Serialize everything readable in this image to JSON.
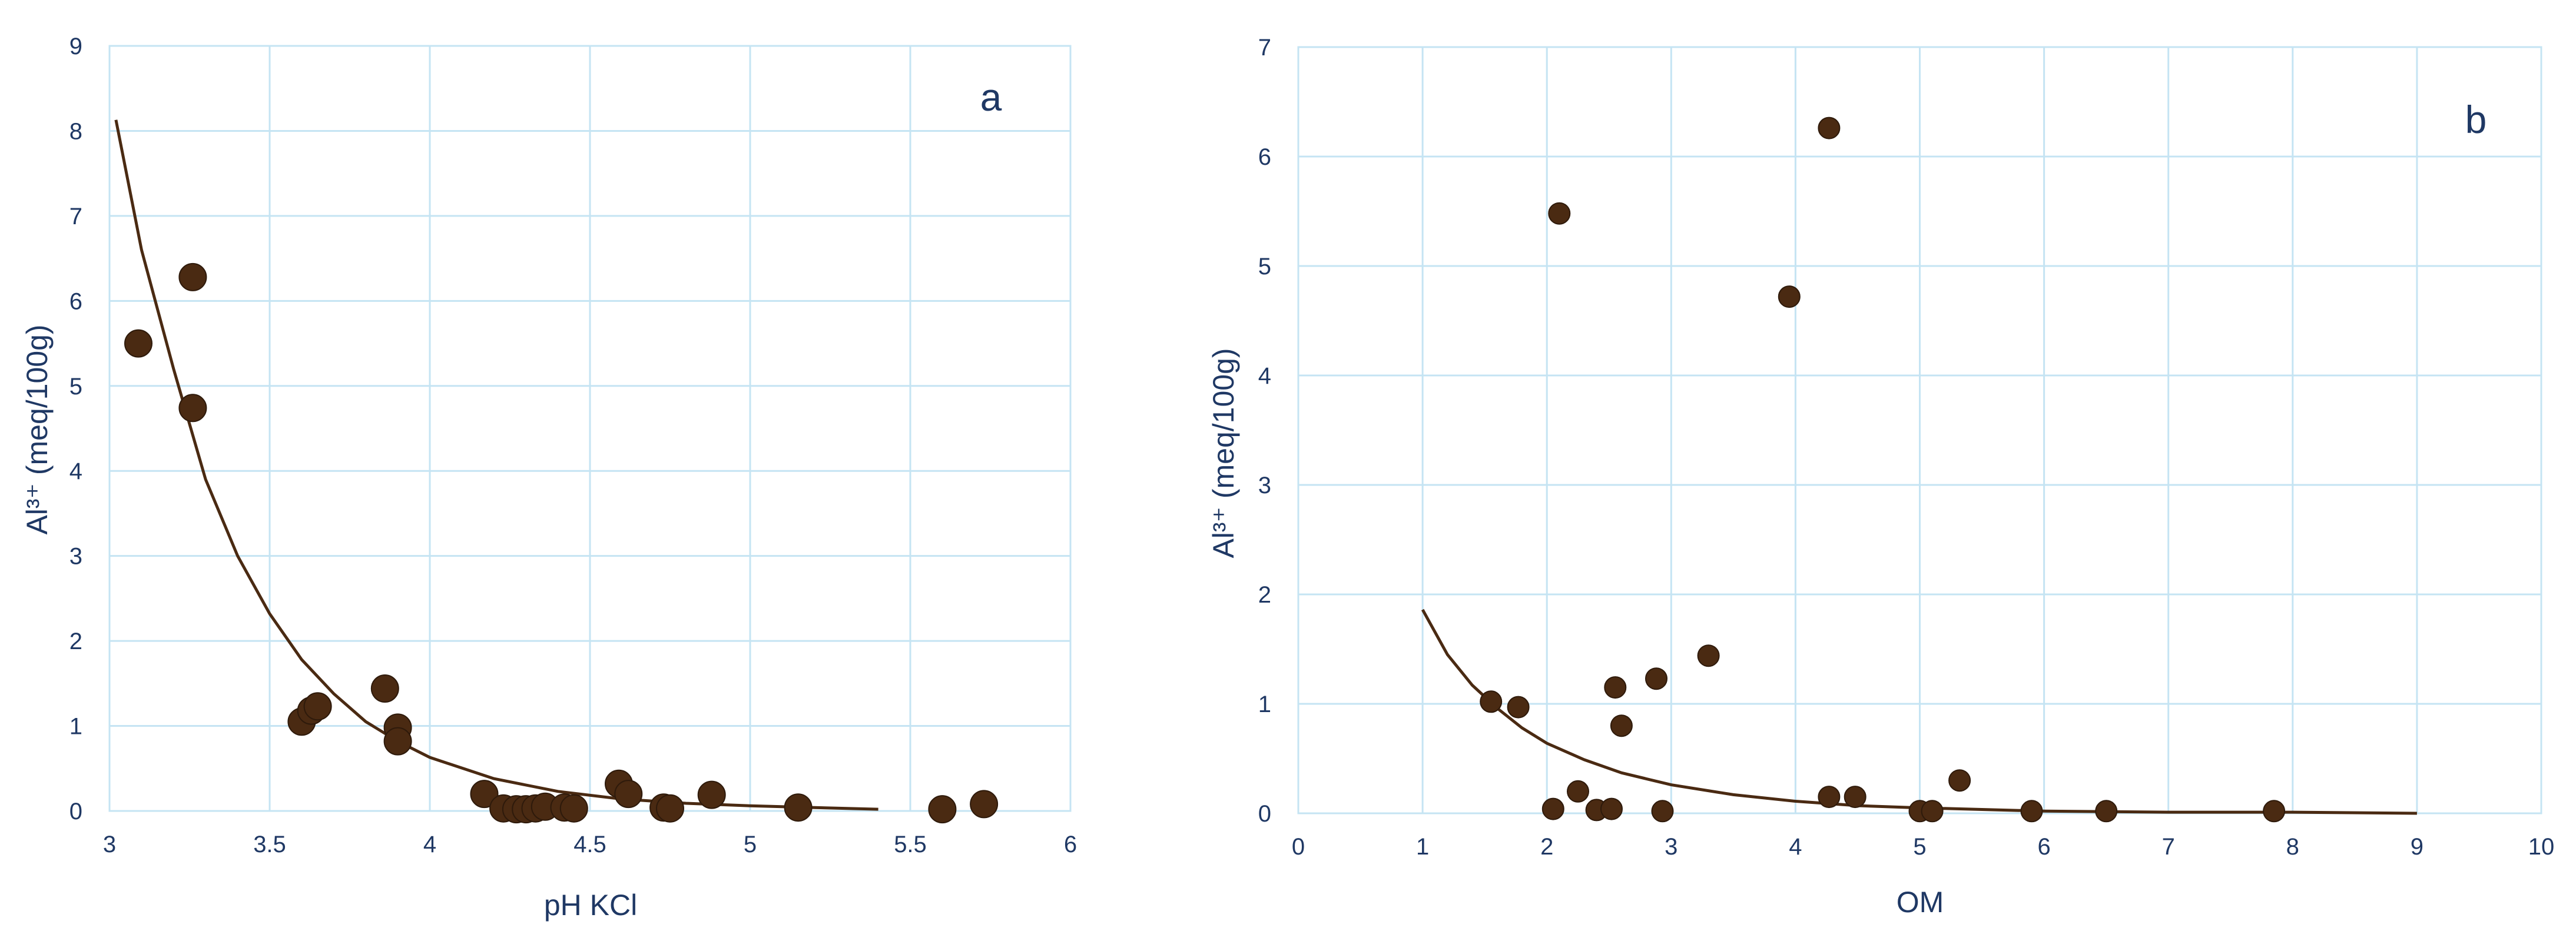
{
  "colors": {
    "marker": "#4a2a12",
    "curve": "#4a2a12",
    "grid": "#c5e4f3",
    "text": "#1f3864"
  },
  "chart_data": [
    {
      "type": "scatter",
      "panel_label": "a",
      "xlabel": "pH KCl",
      "ylabel": "Al³⁺ (meq/100g)",
      "xlim": [
        3,
        6
      ],
      "ylim": [
        0,
        9
      ],
      "x_ticks": [
        "3",
        "3.5",
        "4",
        "4.5",
        "5",
        "5.5",
        "6"
      ],
      "y_ticks": [
        "0",
        "1",
        "2",
        "3",
        "4",
        "5",
        "6",
        "7",
        "8",
        "9"
      ],
      "grid": true,
      "legend": "none",
      "series": [
        {
          "type": "scatter",
          "points": [
            [
              3.09,
              5.5
            ],
            [
              3.26,
              6.28
            ],
            [
              3.26,
              4.74
            ],
            [
              3.6,
              1.05
            ],
            [
              3.63,
              1.18
            ],
            [
              3.65,
              1.23
            ],
            [
              3.86,
              1.44
            ],
            [
              3.9,
              0.98
            ],
            [
              3.9,
              0.82
            ],
            [
              4.17,
              0.2
            ],
            [
              4.23,
              0.03
            ],
            [
              4.27,
              0.02
            ],
            [
              4.3,
              0.02
            ],
            [
              4.33,
              0.03
            ],
            [
              4.36,
              0.05
            ],
            [
              4.42,
              0.04
            ],
            [
              4.45,
              0.03
            ],
            [
              4.59,
              0.32
            ],
            [
              4.62,
              0.2
            ],
            [
              4.73,
              0.04
            ],
            [
              4.75,
              0.03
            ],
            [
              4.88,
              0.19
            ],
            [
              5.15,
              0.04
            ],
            [
              5.6,
              0.02
            ],
            [
              5.73,
              0.08
            ]
          ]
        },
        {
          "type": "line",
          "points": [
            [
              3.02,
              8.13
            ],
            [
              3.1,
              6.6
            ],
            [
              3.2,
              5.2
            ],
            [
              3.3,
              3.9
            ],
            [
              3.4,
              3.0
            ],
            [
              3.5,
              2.32
            ],
            [
              3.6,
              1.78
            ],
            [
              3.7,
              1.38
            ],
            [
              3.8,
              1.05
            ],
            [
              3.9,
              0.82
            ],
            [
              4.0,
              0.63
            ],
            [
              4.2,
              0.38
            ],
            [
              4.4,
              0.23
            ],
            [
              4.6,
              0.14
            ],
            [
              4.8,
              0.09
            ],
            [
              5.0,
              0.06
            ],
            [
              5.2,
              0.04
            ],
            [
              5.4,
              0.02
            ]
          ]
        }
      ]
    },
    {
      "type": "scatter",
      "panel_label": "b",
      "xlabel": "OM",
      "ylabel": "Al³⁺ (meq/100g)",
      "xlim": [
        0,
        10
      ],
      "ylim": [
        0,
        7
      ],
      "x_ticks": [
        "0",
        "1",
        "2",
        "3",
        "4",
        "5",
        "6",
        "7",
        "8",
        "9",
        "10"
      ],
      "y_ticks": [
        "0",
        "1",
        "2",
        "3",
        "4",
        "5",
        "6",
        "7"
      ],
      "grid": true,
      "legend": "none",
      "series": [
        {
          "type": "scatter",
          "points": [
            [
              1.55,
              1.02
            ],
            [
              1.77,
              0.97
            ],
            [
              2.05,
              0.04
            ],
            [
              2.1,
              5.48
            ],
            [
              2.25,
              0.2
            ],
            [
              2.4,
              0.03
            ],
            [
              2.52,
              0.04
            ],
            [
              2.55,
              1.15
            ],
            [
              2.6,
              0.8
            ],
            [
              2.88,
              1.23
            ],
            [
              2.93,
              0.02
            ],
            [
              3.3,
              1.44
            ],
            [
              3.95,
              4.72
            ],
            [
              4.27,
              6.26
            ],
            [
              4.27,
              0.15
            ],
            [
              4.48,
              0.15
            ],
            [
              5.0,
              0.02
            ],
            [
              5.1,
              0.02
            ],
            [
              5.32,
              0.3
            ],
            [
              5.9,
              0.02
            ],
            [
              6.5,
              0.02
            ],
            [
              7.85,
              0.02
            ]
          ]
        },
        {
          "type": "line",
          "points": [
            [
              1.0,
              1.86
            ],
            [
              1.2,
              1.45
            ],
            [
              1.4,
              1.17
            ],
            [
              1.6,
              0.96
            ],
            [
              1.8,
              0.78
            ],
            [
              2.0,
              0.64
            ],
            [
              2.3,
              0.49
            ],
            [
              2.6,
              0.37
            ],
            [
              3.0,
              0.26
            ],
            [
              3.5,
              0.17
            ],
            [
              4.0,
              0.11
            ],
            [
              4.5,
              0.07
            ],
            [
              5.0,
              0.05
            ],
            [
              6.0,
              0.02
            ],
            [
              7.0,
              0.01
            ],
            [
              8.0,
              0.01
            ],
            [
              9.0,
              0.0
            ]
          ]
        }
      ]
    }
  ]
}
